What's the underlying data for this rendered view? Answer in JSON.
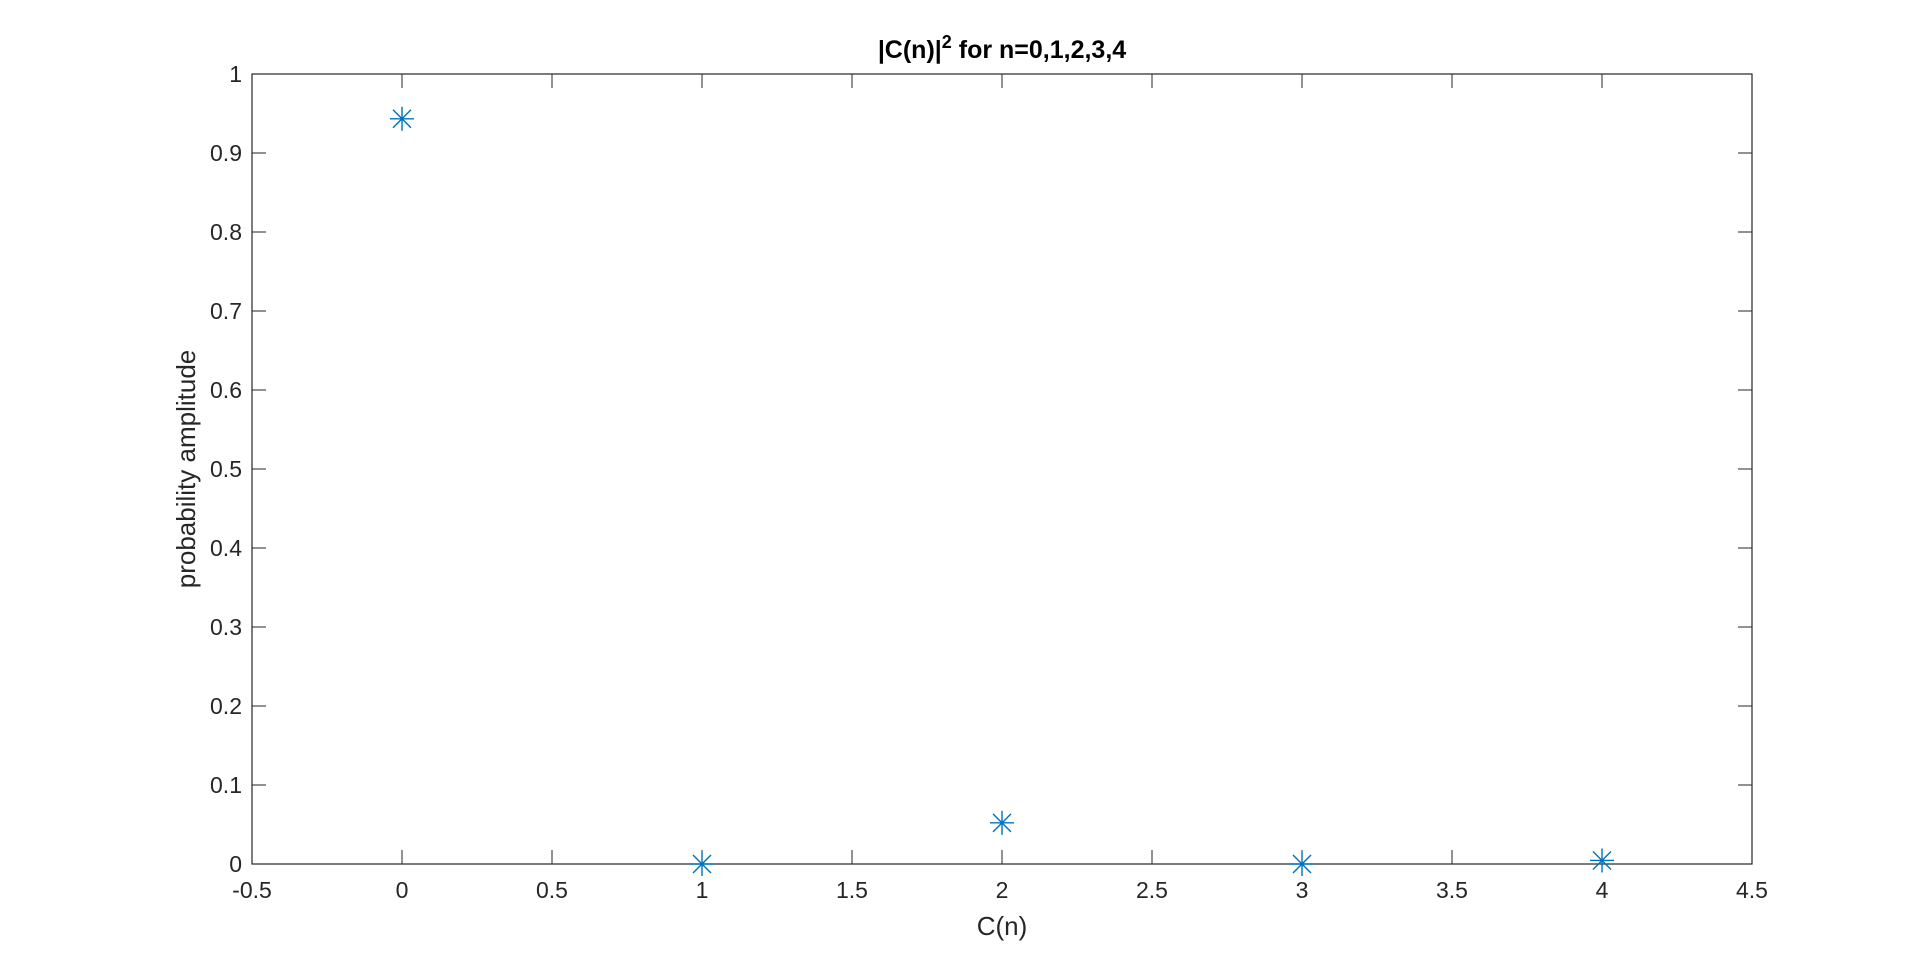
{
  "chart_data": {
    "type": "scatter",
    "title_main": "|C(n)|",
    "title_sup": "2",
    "title_rest": " for n=0,1,2,3,4",
    "xlabel": "C(n)",
    "ylabel": "probability amplitude",
    "xlim": [
      -0.5,
      4.5
    ],
    "ylim": [
      0,
      1
    ],
    "xticks": [
      "-0.5",
      "0",
      "0.5",
      "1",
      "1.5",
      "2",
      "2.5",
      "3",
      "3.5",
      "4",
      "4.5"
    ],
    "yticks": [
      "0",
      "0.1",
      "0.2",
      "0.3",
      "0.4",
      "0.5",
      "0.6",
      "0.7",
      "0.8",
      "0.9",
      "1"
    ],
    "grid": false,
    "marker": "asterisk",
    "series": [
      {
        "x": [
          0,
          1,
          2,
          3,
          4
        ],
        "y": [
          0.9433,
          0.0,
          0.0521,
          0.0,
          0.0045
        ]
      }
    ],
    "colors": {
      "marker": "#0072BD",
      "axis": "#262626"
    }
  }
}
